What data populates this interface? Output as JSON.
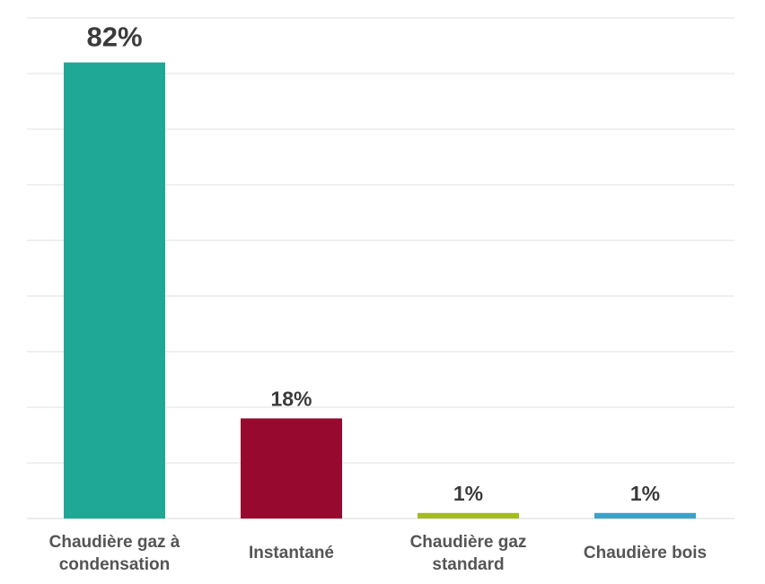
{
  "chart_data": {
    "type": "bar",
    "title": "",
    "xlabel": "",
    "ylabel": "",
    "ylim": [
      0,
      90
    ],
    "grid": true,
    "categories": [
      [
        "Chaudière gaz à",
        "condensation"
      ],
      [
        "Instantané"
      ],
      [
        "Chaudière gaz",
        "standard"
      ],
      [
        "Chaudière bois"
      ]
    ],
    "values": [
      82,
      18,
      1,
      1
    ],
    "value_labels": [
      "82%",
      "18%",
      "1%",
      "1%"
    ],
    "colors": [
      "#1fa896",
      "#98092f",
      "#a4bd1b",
      "#3ea0c6"
    ]
  }
}
